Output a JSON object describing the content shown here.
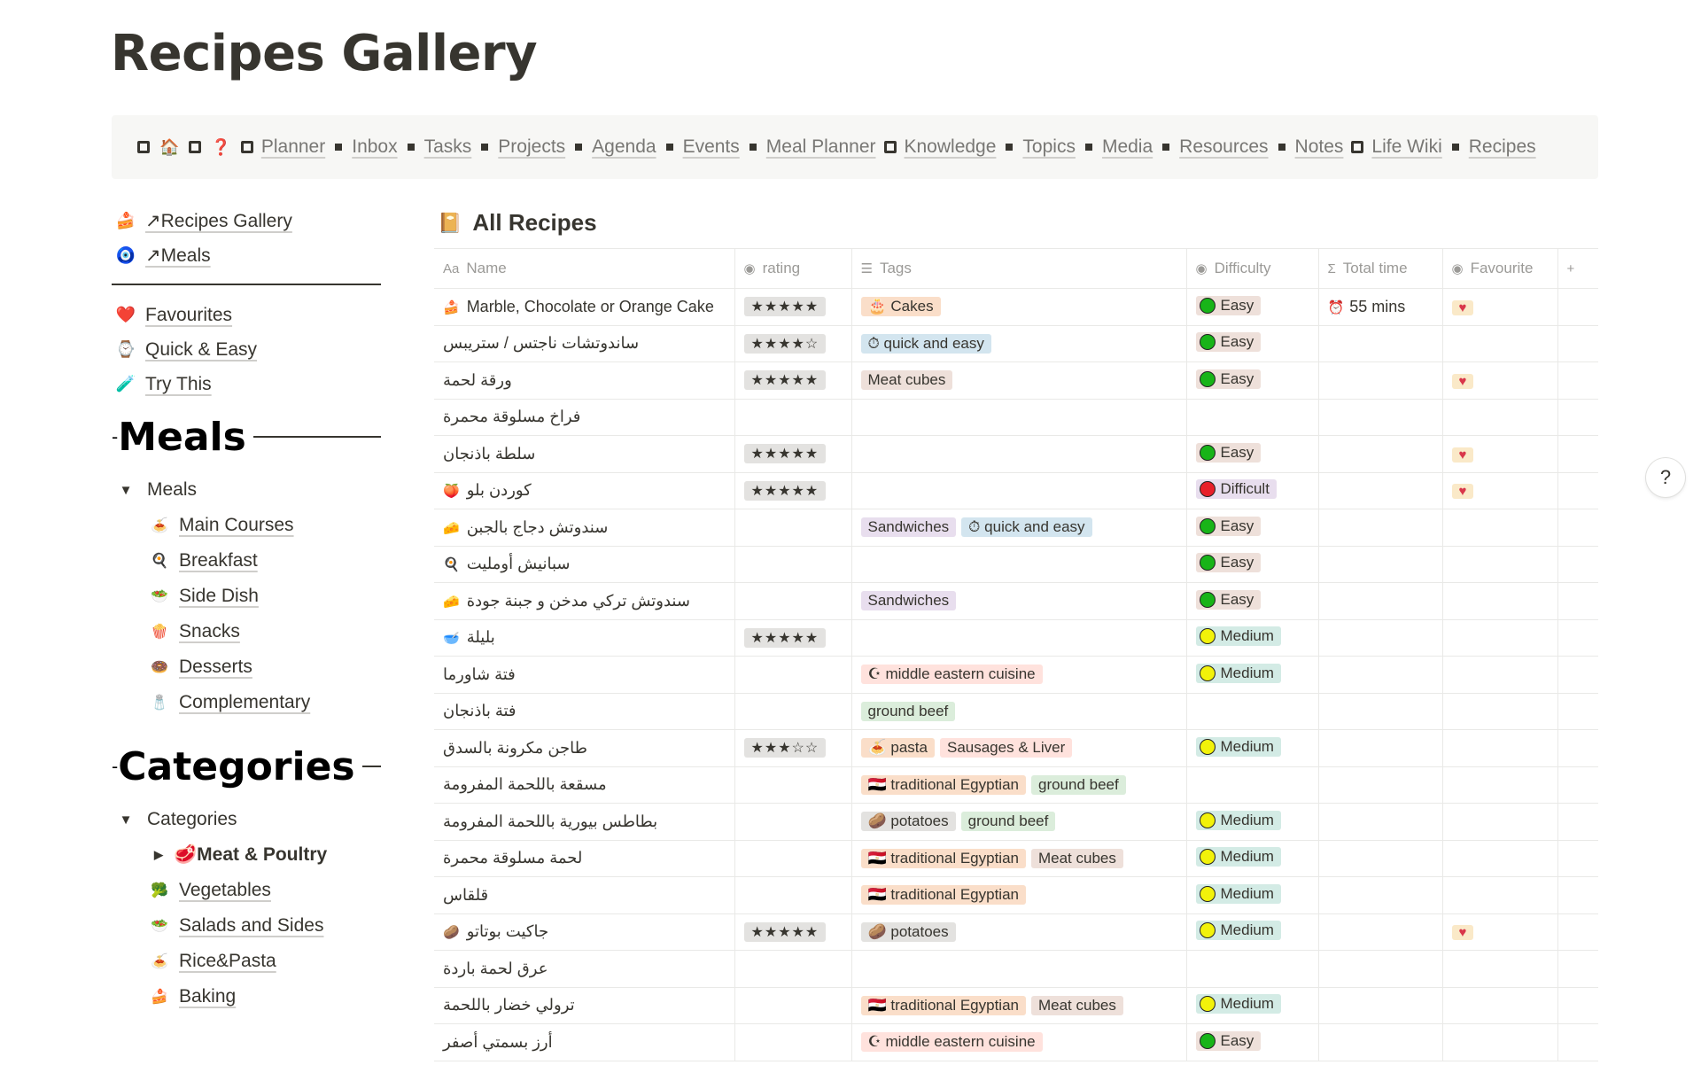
{
  "page": {
    "title": "Recipes Gallery"
  },
  "nav": {
    "home_emoji": "🏠",
    "question_emoji": "❓",
    "links": [
      "Planner",
      "Inbox",
      "Tasks",
      "Projects",
      "Agenda",
      "Events",
      "Meal Planner",
      "Knowledge",
      "Topics",
      "Media",
      "Resources",
      "Notes",
      "Life Wiki",
      "Recipes"
    ]
  },
  "sidebar": {
    "links": [
      {
        "icon": "🍰",
        "label": "↗Recipes Gallery"
      },
      {
        "icon": "🧿",
        "label": "↗Meals"
      }
    ],
    "filters": [
      {
        "icon": "❤️",
        "label": "Favourites"
      },
      {
        "icon": "⌚",
        "label": "Quick & Easy"
      },
      {
        "icon": "🧪",
        "label": "Try This"
      }
    ],
    "meals_heading": "Meals",
    "meals_toggle": "Meals",
    "meals": [
      {
        "icon": "🍝",
        "label": "Main Courses"
      },
      {
        "icon": "🍳",
        "label": "Breakfast"
      },
      {
        "icon": "🥗",
        "label": "Side Dish"
      },
      {
        "icon": "🍿",
        "label": "Snacks"
      },
      {
        "icon": "🍩",
        "label": "Desserts"
      },
      {
        "icon": "🧂",
        "label": "Complementary"
      }
    ],
    "categories_heading": "Categories",
    "categories_toggle": "Categories",
    "categories": [
      {
        "icon": "🥩",
        "label": "Meat & Poultry",
        "toggle": true
      },
      {
        "icon": "🥦",
        "label": "Vegetables"
      },
      {
        "icon": "🥗",
        "label": "Salads and Sides"
      },
      {
        "icon": "🍝",
        "label": "Rice&Pasta"
      },
      {
        "icon": "🍰",
        "label": "Baking"
      }
    ]
  },
  "database": {
    "icon": "📔",
    "title": "All Recipes",
    "columns": [
      {
        "icon": "Aa",
        "label": "Name"
      },
      {
        "icon": "◉",
        "label": "rating"
      },
      {
        "icon": "☰",
        "label": "Tags"
      },
      {
        "icon": "◉",
        "label": "Difficulty"
      },
      {
        "icon": "Σ",
        "label": "Total time"
      },
      {
        "icon": "◉",
        "label": "Favourite"
      },
      {
        "icon": "+",
        "label": ""
      }
    ],
    "rows": [
      {
        "emoji": "🍰",
        "name": "Marble, Chocolate or Orange Cake",
        "rating": "★★★★★",
        "tags": [
          {
            "label": "🎂 Cakes",
            "color": "#fadec9"
          }
        ],
        "difficulty": "Easy",
        "time": "55 mins",
        "fav": "♥"
      },
      {
        "emoji": "",
        "name": "ساندوتشات ناجتس / ستريبس",
        "rating": "★★★★☆",
        "tags": [
          {
            "label": "⏱ quick and easy",
            "color": "#d3e5ef"
          }
        ],
        "difficulty": "Easy",
        "time": "",
        "fav": ""
      },
      {
        "emoji": "",
        "name": "ورقة لحمة",
        "rating": "★★★★★",
        "tags": [
          {
            "label": "Meat cubes",
            "color": "#eee0da"
          }
        ],
        "difficulty": "Easy",
        "time": "",
        "fav": "♥"
      },
      {
        "emoji": "",
        "name": "فراخ مسلوقة محمرة",
        "rating": "",
        "tags": [],
        "difficulty": "",
        "time": "",
        "fav": ""
      },
      {
        "emoji": "",
        "name": "سلطة باذنجان",
        "rating": "★★★★★",
        "tags": [],
        "difficulty": "Easy",
        "time": "",
        "fav": "♥"
      },
      {
        "emoji": "🍑",
        "name": "كوردن بلو",
        "rating": "★★★★★",
        "tags": [],
        "difficulty": "Difficult",
        "time": "",
        "fav": "♥"
      },
      {
        "emoji": "🧀",
        "name": "سندوتش دجاج بالجبن",
        "rating": "",
        "tags": [
          {
            "label": "Sandwiches",
            "color": "#e8deee"
          },
          {
            "label": "⏱ quick and easy",
            "color": "#d3e5ef"
          }
        ],
        "difficulty": "Easy",
        "time": "",
        "fav": ""
      },
      {
        "emoji": "🍳",
        "name": "سبانيش أومليت",
        "rating": "",
        "tags": [],
        "difficulty": "Easy",
        "time": "",
        "fav": ""
      },
      {
        "emoji": "🧀",
        "name": "سندوتش تركي مدخن و جبنة جودة",
        "rating": "",
        "tags": [
          {
            "label": "Sandwiches",
            "color": "#e8deee"
          }
        ],
        "difficulty": "Easy",
        "time": "",
        "fav": ""
      },
      {
        "emoji": "🥣",
        "name": "بليلة",
        "rating": "★★★★★",
        "tags": [],
        "difficulty": "Medium",
        "time": "",
        "fav": ""
      },
      {
        "emoji": "",
        "name": "فتة شاورما",
        "rating": "",
        "tags": [
          {
            "label": "☪ middle eastern cuisine",
            "color": "#ffe2dd"
          }
        ],
        "difficulty": "Medium",
        "time": "",
        "fav": ""
      },
      {
        "emoji": "",
        "name": "فتة باذنجان",
        "rating": "",
        "tags": [
          {
            "label": "ground beef",
            "color": "#dbeddb"
          }
        ],
        "difficulty": "",
        "time": "",
        "fav": ""
      },
      {
        "emoji": "",
        "name": "طاجن مكرونة بالسدق",
        "rating": "★★★☆☆",
        "tags": [
          {
            "label": "🍝 pasta",
            "color": "#fadec9"
          },
          {
            "label": "Sausages & Liver",
            "color": "#ffe2dd"
          }
        ],
        "difficulty": "Medium",
        "time": "",
        "fav": ""
      },
      {
        "emoji": "",
        "name": "مسقعة باللحمة المفرومة",
        "rating": "",
        "tags": [
          {
            "label": "🇪🇬 traditional Egyptian",
            "color": "#fadec9"
          },
          {
            "label": "ground beef",
            "color": "#dbeddb"
          }
        ],
        "difficulty": "",
        "time": "",
        "fav": ""
      },
      {
        "emoji": "",
        "name": "بطاطس بيورية باللحمة المفرومة",
        "rating": "",
        "tags": [
          {
            "label": "🥔 potatoes",
            "color": "#e3e2e0"
          },
          {
            "label": "ground beef",
            "color": "#dbeddb"
          }
        ],
        "difficulty": "Medium",
        "time": "",
        "fav": ""
      },
      {
        "emoji": "",
        "name": "لحمة مسلوقة محمرة",
        "rating": "",
        "tags": [
          {
            "label": "🇪🇬 traditional Egyptian",
            "color": "#fadec9"
          },
          {
            "label": "Meat cubes",
            "color": "#eee0da"
          }
        ],
        "difficulty": "Medium",
        "time": "",
        "fav": ""
      },
      {
        "emoji": "",
        "name": "قلقاس",
        "rating": "",
        "tags": [
          {
            "label": "🇪🇬 traditional Egyptian",
            "color": "#fadec9"
          }
        ],
        "difficulty": "Medium",
        "time": "",
        "fav": ""
      },
      {
        "emoji": "🥔",
        "name": "جاكيت بوتاتو",
        "rating": "★★★★★",
        "tags": [
          {
            "label": "🥔 potatoes",
            "color": "#e3e2e0"
          }
        ],
        "difficulty": "Medium",
        "time": "",
        "fav": "♥"
      },
      {
        "emoji": "",
        "name": "عرق لحمة باردة",
        "rating": "",
        "tags": [],
        "difficulty": "",
        "time": "",
        "fav": ""
      },
      {
        "emoji": "",
        "name": "ترولي خضار باللحمة",
        "rating": "",
        "tags": [
          {
            "label": "🇪🇬 traditional Egyptian",
            "color": "#fadec9"
          },
          {
            "label": "Meat cubes",
            "color": "#eee0da"
          }
        ],
        "difficulty": "Medium",
        "time": "",
        "fav": ""
      },
      {
        "emoji": "",
        "name": "أرز بسمتي أصفر",
        "rating": "",
        "tags": [
          {
            "label": "☪ middle eastern cuisine",
            "color": "#ffe2dd"
          }
        ],
        "difficulty": "Easy",
        "time": "",
        "fav": ""
      }
    ],
    "difficulty_styles": {
      "Easy": {
        "bg": "#eee0da",
        "dot": "#18b418"
      },
      "Medium": {
        "bg": "#d3ebe5",
        "dot": "#f2f20a"
      },
      "Difficult": {
        "bg": "#e8deee",
        "dot": "#e8202a"
      }
    },
    "time_emoji": "⏰"
  },
  "help_label": "?"
}
